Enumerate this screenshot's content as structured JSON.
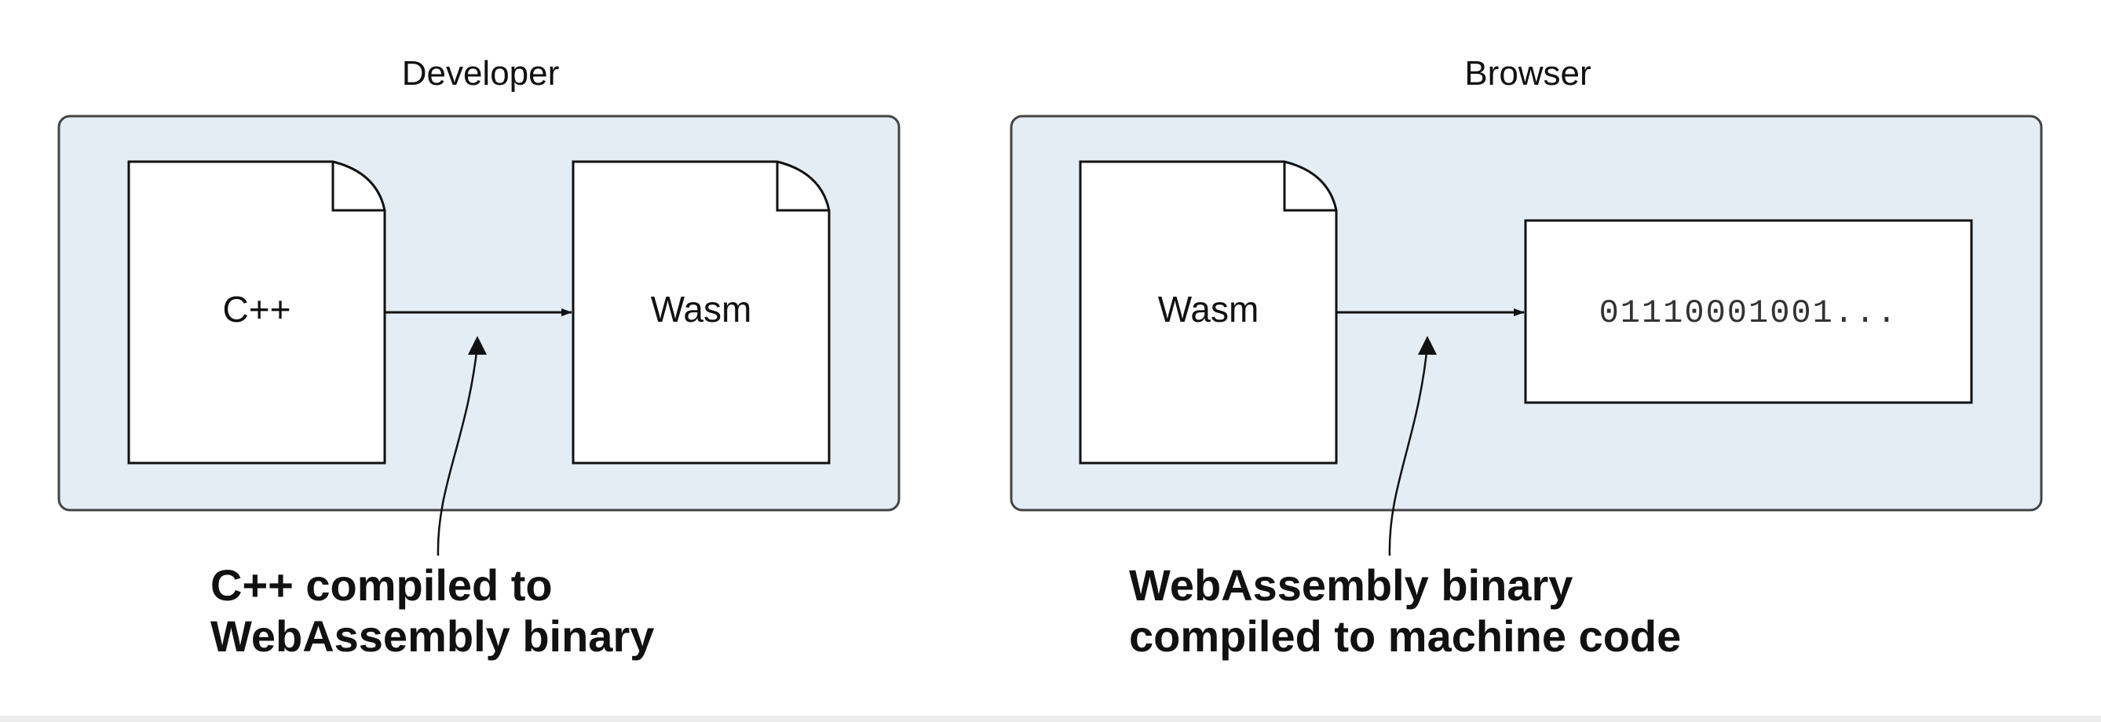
{
  "panels": {
    "developer": {
      "title": "Developer",
      "source_file": "C++",
      "output_file": "Wasm",
      "callout_lines": [
        "C++ compiled to",
        "WebAssembly binary"
      ]
    },
    "browser": {
      "title": "Browser",
      "source_file": "Wasm",
      "output_box": "01110001001...",
      "callout_lines": [
        "WebAssembly binary",
        "compiled to machine code"
      ]
    }
  },
  "colors": {
    "panel_fill": "#e4ecf4",
    "panel_stroke": "#444444",
    "doc_fill": "#ffffff",
    "line": "#111111",
    "text": "#111111"
  }
}
